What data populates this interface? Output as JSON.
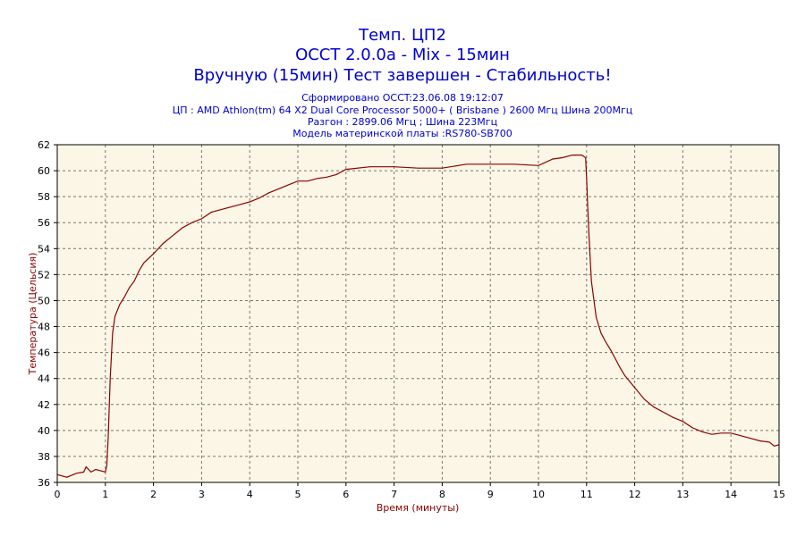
{
  "chart_data": {
    "type": "line",
    "title_lines": [
      "Темп. ЦП2",
      "OCCT 2.0.0a - Mix - 15мин",
      "Вручную (15мин) Тест завершен - Стабильность!"
    ],
    "subtitle_lines": [
      "Сформировано OCCT:23.06.08 19:12:07",
      "ЦП : AMD Athlon(tm) 64 X2 Dual Core Processor 5000+ ( Brisbane ) 2600 Мгц Шина 200Мгц",
      "Разгон : 2899.06 Мгц ; Шина 223Мгц",
      "Модель материнской платы :RS780-SB700"
    ],
    "xlabel": "Время (минуты)",
    "ylabel": "Температура (Цельсия)",
    "xlim": [
      0,
      15
    ],
    "ylim": [
      36,
      62
    ],
    "xticks": [
      0,
      1,
      2,
      3,
      4,
      5,
      6,
      7,
      8,
      9,
      10,
      11,
      12,
      13,
      14,
      15
    ],
    "yticks": [
      36,
      38,
      40,
      42,
      44,
      46,
      48,
      50,
      52,
      54,
      56,
      58,
      60,
      62
    ],
    "grid": true,
    "colors": {
      "line": "#8b0000",
      "plot_bg": "#fcf6e6",
      "text": "#0000cc",
      "axis_label": "#8b0000",
      "grid": "#777777"
    },
    "series": [
      {
        "x": [
          0,
          0.2,
          0.4,
          0.55,
          0.6,
          0.7,
          0.8,
          1.0,
          1.03,
          1.06,
          1.1,
          1.15,
          1.2,
          1.3,
          1.4,
          1.5,
          1.6,
          1.7,
          1.8,
          2.0,
          2.2,
          2.4,
          2.6,
          2.8,
          3.0,
          3.2,
          3.4,
          3.6,
          3.8,
          4.0,
          4.2,
          4.4,
          4.6,
          4.8,
          5.0,
          5.2,
          5.4,
          5.6,
          5.8,
          6.0,
          6.5,
          7.0,
          7.5,
          8.0,
          8.5,
          9.0,
          9.5,
          10.0,
          10.3,
          10.5,
          10.7,
          10.9,
          10.98,
          11.0,
          11.02,
          11.05,
          11.1,
          11.2,
          11.3,
          11.4,
          11.5,
          11.6,
          11.7,
          11.8,
          12.0,
          12.2,
          12.4,
          12.6,
          12.8,
          13.0,
          13.2,
          13.4,
          13.6,
          13.8,
          14.0,
          14.2,
          14.4,
          14.6,
          14.8,
          14.9,
          15.0
        ],
        "y": [
          36.6,
          36.4,
          36.7,
          36.8,
          37.2,
          36.8,
          37.0,
          36.8,
          37.3,
          39.5,
          44.0,
          47.5,
          48.8,
          49.7,
          50.3,
          51.0,
          51.5,
          52.3,
          52.9,
          53.6,
          54.4,
          55.0,
          55.6,
          56.0,
          56.3,
          56.8,
          57.0,
          57.2,
          57.4,
          57.6,
          57.9,
          58.3,
          58.6,
          58.9,
          59.2,
          59.2,
          59.4,
          59.5,
          59.7,
          60.1,
          60.3,
          60.3,
          60.2,
          60.2,
          60.5,
          60.5,
          60.5,
          60.4,
          60.9,
          61.0,
          61.2,
          61.2,
          61.0,
          59.5,
          57.5,
          55.0,
          51.5,
          48.7,
          47.5,
          46.8,
          46.2,
          45.5,
          44.8,
          44.2,
          43.3,
          42.4,
          41.8,
          41.4,
          41.0,
          40.7,
          40.2,
          39.9,
          39.7,
          39.8,
          39.8,
          39.6,
          39.4,
          39.2,
          39.1,
          38.8,
          38.9
        ]
      }
    ]
  }
}
